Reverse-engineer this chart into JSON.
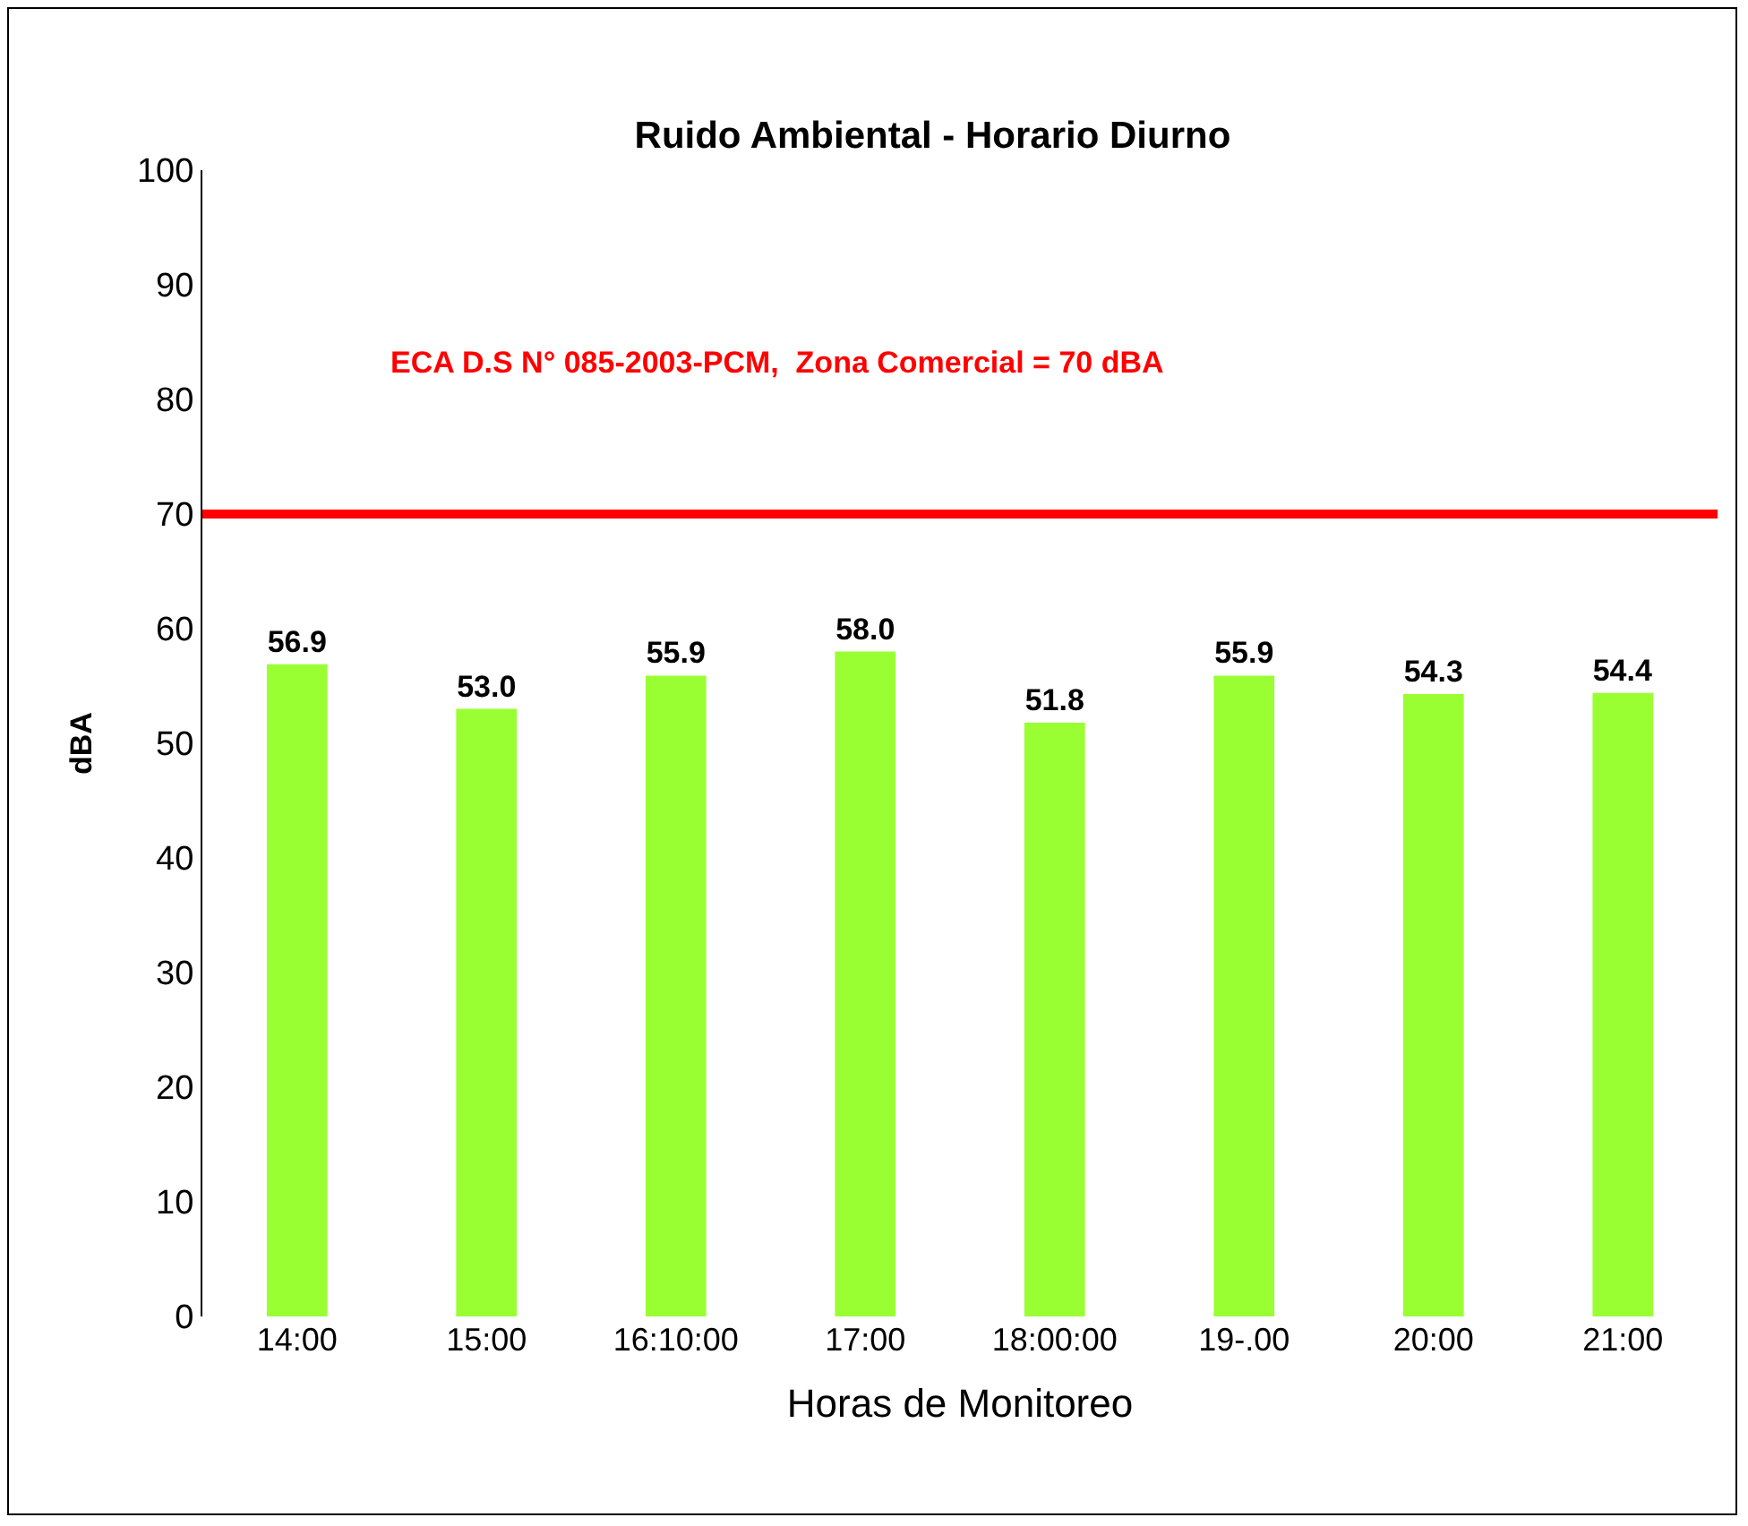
{
  "chart_data": {
    "type": "bar",
    "title": "Ruido Ambiental - Horario Diurno",
    "xlabel": "Horas de Monitoreo",
    "ylabel": "dBA",
    "categories": [
      "14:00",
      "15:00",
      "16:10:00",
      "17:00",
      "18:00:00",
      "19-.00",
      "20:00",
      "21:00"
    ],
    "values": [
      56.9,
      53.0,
      55.9,
      58.0,
      51.8,
      55.9,
      54.3,
      54.4
    ],
    "value_labels": [
      "56.9",
      "53.0",
      "55.9",
      "58.0",
      "51.8",
      "55.9",
      "54.3",
      "54.4"
    ],
    "color": "#99ff33",
    "ylim": [
      0,
      100
    ],
    "yticks": [
      0,
      10,
      20,
      30,
      40,
      50,
      60,
      70,
      80,
      90,
      100
    ],
    "grid": false,
    "ref_lines": [
      {
        "axis": "y",
        "value": 70,
        "label": "ECA D.S N° 085-2003-PCM,  Zona Comercial = 70 dBA",
        "color": "#ff0000"
      }
    ]
  }
}
